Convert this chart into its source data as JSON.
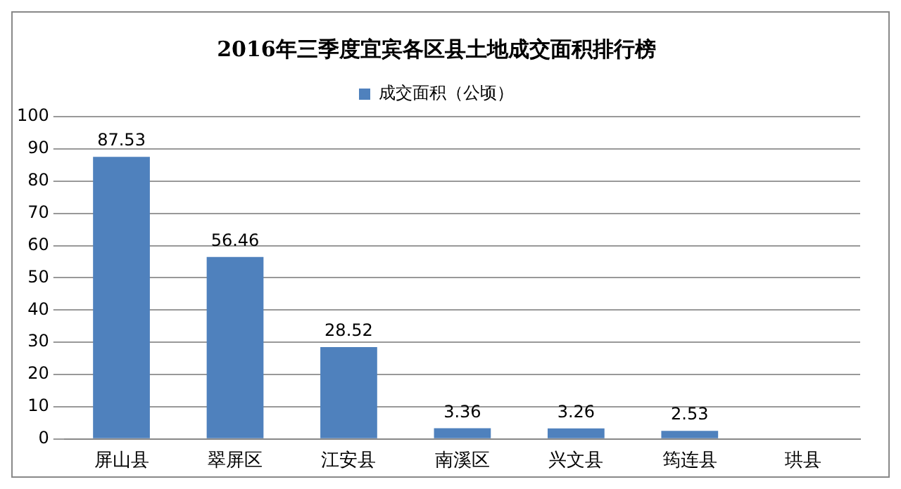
{
  "chart_data": {
    "type": "bar",
    "title": "2016年三季度宜宾各区县土地成交面积排行榜",
    "categories": [
      "屏山县",
      "翠屏区",
      "江安县",
      "南溪区",
      "兴文县",
      "筠连县",
      "珙县"
    ],
    "series": [
      {
        "name": "成交面积（公顷）",
        "color": "#4f81bd",
        "values": [
          87.53,
          56.46,
          28.52,
          3.36,
          3.26,
          2.53,
          null
        ]
      }
    ],
    "ylim": [
      0,
      100
    ],
    "yticks": [
      0,
      10,
      20,
      30,
      40,
      50,
      60,
      70,
      80,
      90,
      100
    ],
    "grid": "y",
    "legend": "top",
    "data_labels": true
  }
}
